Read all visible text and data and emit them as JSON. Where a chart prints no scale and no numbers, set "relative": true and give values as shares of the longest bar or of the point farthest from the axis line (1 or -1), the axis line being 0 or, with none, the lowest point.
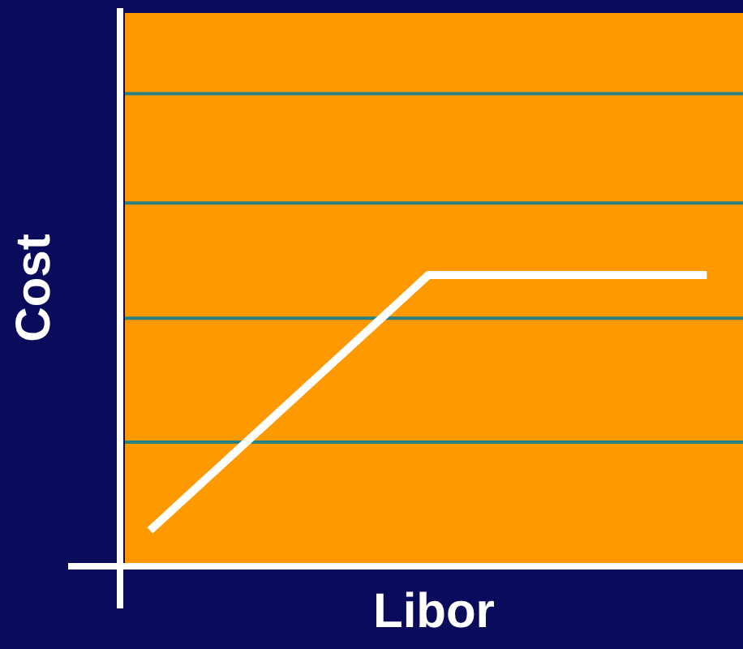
{
  "chart_data": {
    "type": "line",
    "xlabel": "Libor",
    "ylabel": "Cost",
    "relative": true,
    "categories": [
      null,
      null,
      null
    ],
    "series": [
      {
        "color": "#ffffff",
        "values": [
          0.113,
          1,
          1
        ]
      }
    ],
    "ref_lines": [
      {
        "axis": "y",
        "value": 0.42,
        "color": "#2a8080"
      },
      {
        "axis": "y",
        "value": 0.85,
        "color": "#2a8080"
      },
      {
        "axis": "y",
        "value": 1.25,
        "color": "#2a8080"
      },
      {
        "axis": "y",
        "value": 1.63,
        "color": "#2a8080"
      }
    ],
    "legend": false,
    "marker": "none",
    "line_style": "solid"
  }
}
